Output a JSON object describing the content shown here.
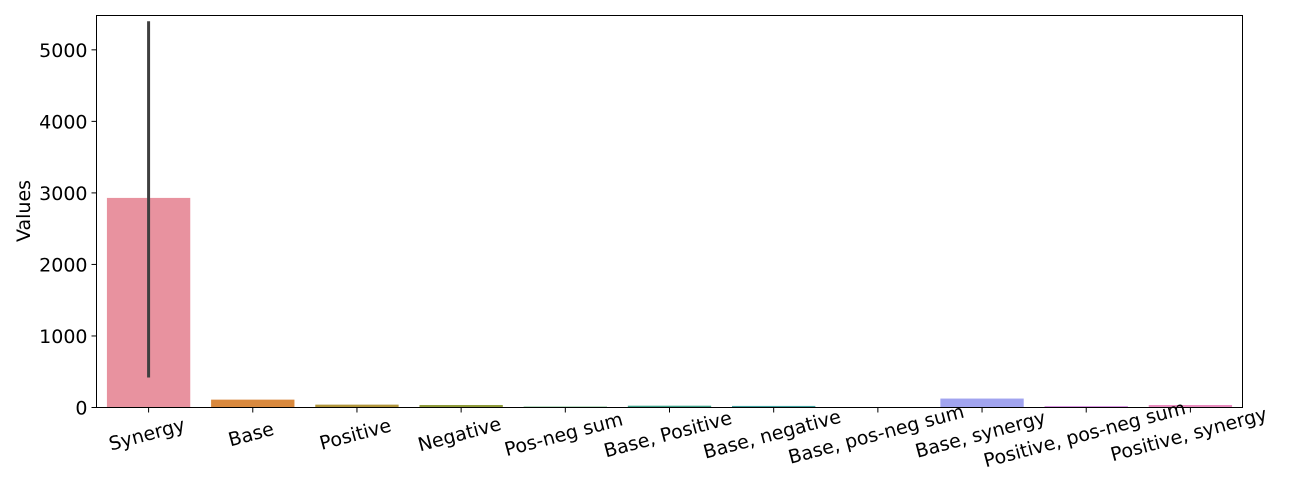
{
  "chart_data": {
    "type": "bar",
    "title": "",
    "xlabel": "",
    "ylabel": "Values",
    "ylim": [
      0,
      5480
    ],
    "yticks": [
      0,
      1000,
      2000,
      3000,
      4000,
      5000
    ],
    "grid": false,
    "categories": [
      "Synergy",
      "Base",
      "Positive",
      "Negative",
      "Pos-neg sum",
      "Base, Positive",
      "Base, negative",
      "Base, pos-neg sum",
      "Base, synergy",
      "Positive, pos-neg sum",
      "Positive, synergy"
    ],
    "values": [
      2930,
      110,
      40,
      35,
      12,
      25,
      22,
      0,
      125,
      20,
      35
    ],
    "error_bars": [
      {
        "category": "Synergy",
        "low": 420,
        "high": 5400
      }
    ],
    "colors": [
      "#e8929f",
      "#d9893e",
      "#b1963c",
      "#8f9b3a",
      "#3fa05c",
      "#3fa28a",
      "#3f9f9d",
      "#3e9cb4",
      "#a1a4ef",
      "#d58ddf",
      "#e98cbf"
    ]
  }
}
